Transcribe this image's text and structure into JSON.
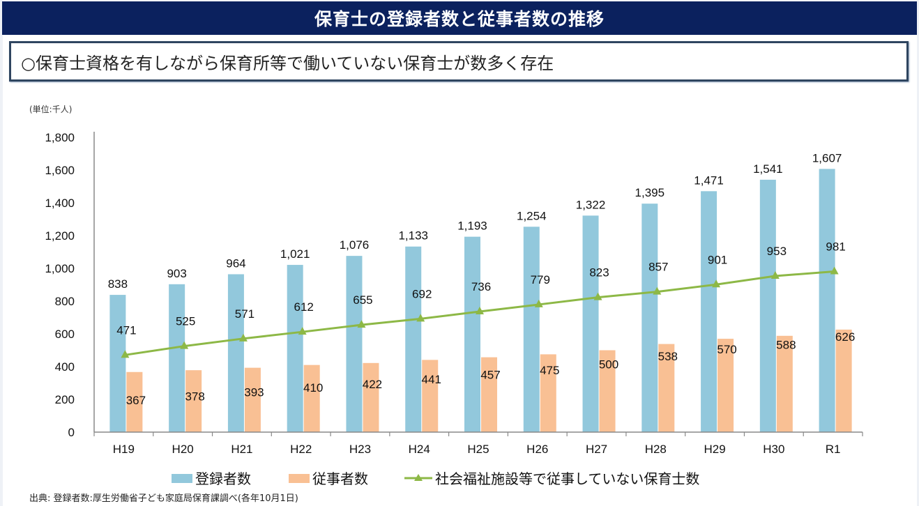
{
  "header": {
    "title": "保育士の登録者数と従事者数の推移",
    "subtitle": "○保育士資格を有しながら保育所等で働いていない保育士が数多く存在"
  },
  "footer": {
    "source": "出典: 登録者数:厚生労働省子ども家庭局保育課調べ(各年10月1日)"
  },
  "colors": {
    "title_bg": "#0b215e",
    "registered": "#92c8dc",
    "employed": "#f9c094",
    "not_employed_line": "#8db846"
  },
  "chart_data": {
    "type": "bar",
    "title": "保育士の登録者数と従事者数の推移",
    "unit_label": "(単位:千人)",
    "xlabel": "",
    "ylabel": "",
    "ylim": [
      0,
      1800
    ],
    "yticks": [
      0,
      200,
      400,
      600,
      800,
      1000,
      1200,
      1400,
      1600,
      1800
    ],
    "ytick_labels": [
      "0",
      "200",
      "400",
      "600",
      "800",
      "1,000",
      "1,200",
      "1,400",
      "1,600",
      "1,800"
    ],
    "grid": false,
    "legend_position": "bottom",
    "categories": [
      "H19",
      "H20",
      "H21",
      "H22",
      "H23",
      "H24",
      "H25",
      "H26",
      "H27",
      "H28",
      "H29",
      "H30",
      "R1"
    ],
    "series": [
      {
        "name": "登録者数",
        "type": "bar",
        "values": [
          838,
          903,
          964,
          1021,
          1076,
          1133,
          1193,
          1254,
          1322,
          1395,
          1471,
          1541,
          1607
        ],
        "labels": [
          "838",
          "903",
          "964",
          "1,021",
          "1,076",
          "1,133",
          "1,193",
          "1,254",
          "1,322",
          "1,395",
          "1,471",
          "1,541",
          "1,607"
        ]
      },
      {
        "name": "従事者数",
        "type": "bar",
        "values": [
          367,
          378,
          393,
          410,
          422,
          441,
          457,
          475,
          500,
          538,
          570,
          588,
          626
        ],
        "labels": [
          "367",
          "378",
          "393",
          "410",
          "422",
          "441",
          "457",
          "475",
          "500",
          "538",
          "570",
          "588",
          "626"
        ]
      },
      {
        "name": "社会福祉施設等で従事していない保育士数",
        "type": "line",
        "marker": "triangle",
        "values": [
          471,
          525,
          571,
          612,
          655,
          692,
          736,
          779,
          823,
          857,
          901,
          953,
          981
        ],
        "labels": [
          "471",
          "525",
          "571",
          "612",
          "655",
          "692",
          "736",
          "779",
          "823",
          "857",
          "901",
          "953",
          "981"
        ]
      }
    ]
  }
}
